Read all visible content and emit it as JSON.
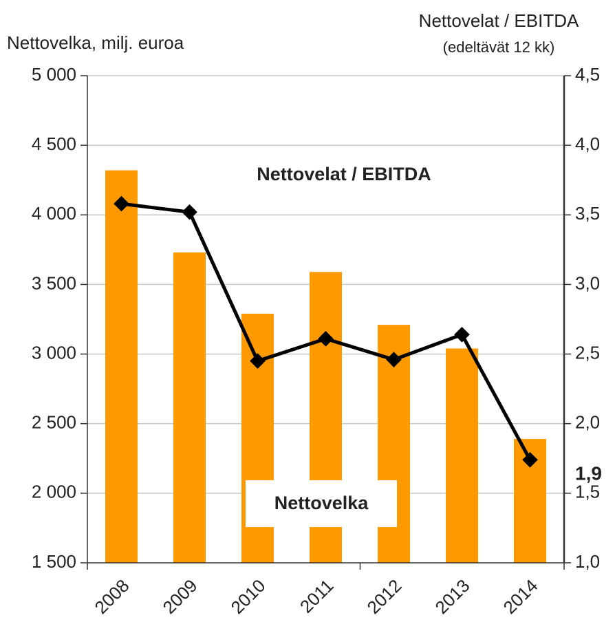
{
  "chart_data": {
    "type": "bar",
    "y_label": "Nettovelka, milj. euroa",
    "y2_label": "Nettovelat / EBITDA",
    "y2_sublabel": "(edeltävät 12 kk)",
    "categories": [
      "2008",
      "2009",
      "2010",
      "2011",
      "2012",
      "2013",
      "2014"
    ],
    "series": [
      {
        "name": "Nettovelka",
        "type": "bar",
        "color": "#ff9900",
        "values": [
          4320,
          3730,
          3290,
          3590,
          3210,
          3040,
          2390
        ]
      },
      {
        "name": "Nettovelat / EBITDA",
        "type": "line",
        "axis": "y2",
        "color": "#000000",
        "values": [
          3.58,
          3.52,
          2.45,
          2.61,
          2.46,
          2.64,
          1.74
        ]
      }
    ],
    "annotations": [
      "1,9"
    ],
    "ylim": [
      1500,
      5000
    ],
    "yticks": [
      {
        "value": 1500,
        "label": "1 500"
      },
      {
        "value": 2000,
        "label": "2 000"
      },
      {
        "value": 2500,
        "label": "2 500"
      },
      {
        "value": 3000,
        "label": "3 000"
      },
      {
        "value": 3500,
        "label": "3 500"
      },
      {
        "value": 4000,
        "label": "4 000"
      },
      {
        "value": 4500,
        "label": "4 500"
      },
      {
        "value": 5000,
        "label": "5 000"
      }
    ],
    "y2lim": [
      1.0,
      4.5
    ],
    "y2ticks": [
      {
        "value": 1.0,
        "label": "1,0"
      },
      {
        "value": 1.5,
        "label": "1,5"
      },
      {
        "value": 2.0,
        "label": "2,0"
      },
      {
        "value": 2.5,
        "label": "2,5"
      },
      {
        "value": 3.0,
        "label": "3,0"
      },
      {
        "value": 3.5,
        "label": "3,5"
      },
      {
        "value": 4.0,
        "label": "4,0"
      },
      {
        "value": 4.5,
        "label": "4,5"
      }
    ],
    "grid": true
  }
}
